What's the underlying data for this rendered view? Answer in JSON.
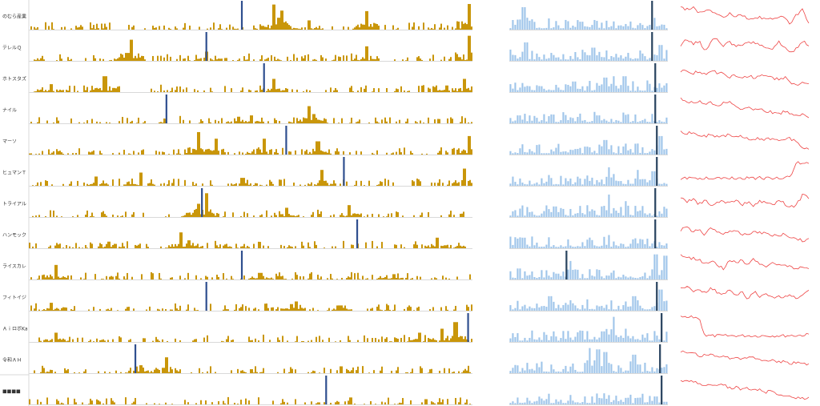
{
  "chart_data": {
    "type": "bar",
    "panels": [
      "daily-volume",
      "weekly-volume",
      "trend-line"
    ],
    "colors": {
      "daily_bar": "#c9960a",
      "weekly_bar": "#9ec4ea",
      "marker": "#2f4f8f",
      "marker_dark": "#27425e",
      "line": "#ee4444",
      "grid": "#d9d9d9"
    },
    "rows": [
      {
        "label": "のむら産業",
        "daily_marker": 0.48,
        "daily_spikes": [
          [
            0.55,
            0.95
          ],
          [
            0.56,
            0.45
          ],
          [
            0.57,
            0.72
          ],
          [
            0.76,
            0.7
          ],
          [
            0.99,
            0.97
          ],
          [
            0.63,
            0.35
          ]
        ],
        "weekly_marker": 0.9,
        "weekly_spikes": [
          [
            0.08,
            0.85
          ],
          [
            0.1,
            0.45
          ],
          [
            0.45,
            0.3
          ]
        ],
        "trend": [
          0.15,
          0.3,
          0.2,
          0.4,
          0.3,
          0.35,
          0.5,
          0.6,
          0.45,
          0.55,
          0.5,
          0.7,
          0.65,
          0.6,
          0.65,
          0.7,
          0.55,
          0.6,
          0.85,
          0.5,
          0.3,
          0.85
        ]
      },
      {
        "label": "テレルＱ",
        "daily_marker": 0.4,
        "daily_spikes": [
          [
            0.23,
            0.8
          ],
          [
            0.22,
            0.3
          ],
          [
            0.4,
            0.35
          ],
          [
            0.76,
            0.55
          ],
          [
            0.99,
            0.95
          ]
        ],
        "weekly_marker": 0.9,
        "weekly_spikes": [
          [
            0.1,
            0.7
          ],
          [
            0.52,
            0.5
          ],
          [
            0.53,
            0.35
          ],
          [
            0.95,
            0.6
          ]
        ],
        "trend": [
          0.5,
          0.2,
          0.4,
          0.3,
          0.7,
          0.3,
          0.2,
          0.5,
          0.3,
          0.55,
          0.45,
          0.4,
          0.35,
          0.5,
          0.55,
          0.6,
          0.3,
          0.55,
          0.8,
          0.6,
          0.3,
          0.5
        ]
      },
      {
        "label": "ホトスタズ",
        "daily_marker": 0.53,
        "daily_spikes": [
          [
            0.17,
            0.6
          ],
          [
            0.05,
            0.3
          ],
          [
            0.55,
            0.5
          ],
          [
            0.94,
            0.25
          ],
          [
            0.98,
            0.5
          ]
        ],
        "weekly_marker": 0.92,
        "weekly_spikes": [
          [
            0.6,
            0.55
          ],
          [
            0.65,
            0.6
          ],
          [
            0.72,
            0.6
          ],
          [
            0.4,
            0.4
          ]
        ],
        "trend": [
          0.3,
          0.2,
          0.35,
          0.25,
          0.4,
          0.2,
          0.35,
          0.3,
          0.5,
          0.4,
          0.5,
          0.45,
          0.5,
          0.45,
          0.4,
          0.5,
          0.6,
          0.5,
          0.7,
          0.85,
          0.7,
          0.75
        ]
      },
      {
        "label": "ナイル",
        "daily_marker": 0.31,
        "daily_spikes": [
          [
            0.63,
            0.65
          ],
          [
            0.64,
            0.35
          ],
          [
            0.5,
            0.3
          ],
          [
            0.47,
            0.25
          ]
        ],
        "weekly_marker": 0.92,
        "weekly_spikes": [
          [
            0.05,
            0.3
          ],
          [
            0.55,
            0.3
          ]
        ],
        "trend": [
          0.1,
          0.2,
          0.25,
          0.2,
          0.3,
          0.25,
          0.35,
          0.3,
          0.25,
          0.4,
          0.5,
          0.45,
          0.55,
          0.5,
          0.6,
          0.65,
          0.75,
          0.6,
          0.7,
          0.8,
          0.75,
          0.85
        ]
      },
      {
        "label": "マーソ",
        "daily_marker": 0.58,
        "daily_spikes": [
          [
            0.38,
            0.85
          ],
          [
            0.42,
            0.6
          ],
          [
            0.53,
            0.6
          ],
          [
            0.65,
            0.5
          ],
          [
            0.99,
            0.7
          ]
        ],
        "weekly_marker": 0.93,
        "weekly_spikes": [
          [
            0.6,
            0.55
          ],
          [
            0.95,
            0.7
          ],
          [
            0.48,
            0.3
          ]
        ],
        "trend": [
          0.2,
          0.25,
          0.2,
          0.3,
          0.35,
          0.3,
          0.4,
          0.35,
          0.3,
          0.4,
          0.35,
          0.45,
          0.5,
          0.45,
          0.5,
          0.45,
          0.55,
          0.5,
          0.45,
          0.6,
          0.8,
          0.85
        ]
      },
      {
        "label": "ヒュマンＴ",
        "daily_marker": 0.71,
        "daily_spikes": [
          [
            0.25,
            0.5
          ],
          [
            0.66,
            0.6
          ],
          [
            0.98,
            0.65
          ],
          [
            0.15,
            0.35
          ],
          [
            0.48,
            0.3
          ]
        ],
        "weekly_marker": 0.93,
        "weekly_spikes": [
          [
            0.62,
            0.7
          ],
          [
            0.8,
            0.6
          ],
          [
            0.9,
            0.55
          ]
        ],
        "trend": [
          0.8,
          0.8,
          0.78,
          0.8,
          0.79,
          0.78,
          0.8,
          0.78,
          0.79,
          0.8,
          0.78,
          0.79,
          0.8,
          0.78,
          0.79,
          0.78,
          0.77,
          0.78,
          0.75,
          0.15,
          0.2,
          0.15
        ]
      },
      {
        "label": "トライアル",
        "daily_marker": 0.39,
        "daily_spikes": [
          [
            0.4,
            0.9
          ],
          [
            0.38,
            0.5
          ],
          [
            0.72,
            0.45
          ],
          [
            0.58,
            0.35
          ]
        ],
        "weekly_marker": 0.92,
        "weekly_spikes": [
          [
            0.62,
            0.85
          ],
          [
            0.73,
            0.6
          ],
          [
            0.28,
            0.4
          ]
        ],
        "trend": [
          0.3,
          0.5,
          0.35,
          0.6,
          0.4,
          0.7,
          0.5,
          0.45,
          0.55,
          0.4,
          0.6,
          0.5,
          0.65,
          0.45,
          0.55,
          0.6,
          0.45,
          0.55,
          0.7,
          0.6,
          0.2,
          0.3
        ]
      },
      {
        "label": "ハンモック",
        "daily_marker": 0.74,
        "daily_spikes": [
          [
            0.34,
            0.6
          ],
          [
            0.36,
            0.3
          ],
          [
            0.92,
            0.4
          ],
          [
            0.18,
            0.25
          ]
        ],
        "weekly_marker": 0.92,
        "weekly_spikes": [
          [
            0.08,
            0.4
          ],
          [
            0.62,
            0.5
          ],
          [
            0.82,
            0.35
          ]
        ],
        "trend": [
          0.4,
          0.2,
          0.5,
          0.3,
          0.55,
          0.25,
          0.45,
          0.5,
          0.4,
          0.45,
          0.5,
          0.55,
          0.4,
          0.45,
          0.5,
          0.55,
          0.6,
          0.5,
          0.65,
          0.7,
          0.8,
          0.75
        ]
      },
      {
        "label": "ライスカレ",
        "daily_marker": 0.48,
        "daily_spikes": [
          [
            0.06,
            0.55
          ],
          [
            0.52,
            0.25
          ],
          [
            0.82,
            0.2
          ]
        ],
        "weekly_marker": 0.36,
        "weekly_spikes": [
          [
            0.38,
            0.7
          ],
          [
            0.92,
            0.95
          ],
          [
            0.98,
            0.9
          ]
        ],
        "trend": [
          0.1,
          0.2,
          0.25,
          0.3,
          0.45,
          0.35,
          0.5,
          0.65,
          0.3,
          0.4,
          0.35,
          0.55,
          0.25,
          0.5,
          0.6,
          0.4,
          0.55,
          0.5,
          0.6,
          0.65,
          0.6,
          0.7
        ]
      },
      {
        "label": "フィトイジ",
        "daily_marker": 0.4,
        "daily_spikes": [
          [
            0.59,
            0.25
          ],
          [
            0.6,
            0.35
          ],
          [
            0.05,
            0.3
          ],
          [
            0.7,
            0.2
          ]
        ],
        "weekly_marker": 0.93,
        "weekly_spikes": [
          [
            0.25,
            0.55
          ],
          [
            0.78,
            0.55
          ],
          [
            0.95,
            0.8
          ]
        ],
        "trend": [
          0.2,
          0.1,
          0.3,
          0.2,
          0.4,
          0.2,
          0.35,
          0.45,
          0.3,
          0.5,
          0.35,
          0.6,
          0.3,
          0.55,
          0.4,
          0.6,
          0.5,
          0.55,
          0.45,
          0.6,
          0.5,
          0.3
        ]
      },
      {
        "label": "ＡｉロボKa",
        "daily_marker": 0.99,
        "daily_spikes": [
          [
            0.96,
            0.75
          ],
          [
            0.93,
            0.5
          ],
          [
            0.88,
            0.35
          ],
          [
            0.06,
            0.35
          ]
        ],
        "weekly_marker": 0.96,
        "weekly_spikes": [
          [
            0.65,
            0.95
          ],
          [
            0.73,
            0.5
          ],
          [
            0.58,
            0.4
          ]
        ],
        "trend": [
          0.1,
          0.12,
          0.1,
          0.12,
          0.85,
          0.85,
          0.85,
          0.85,
          0.85,
          0.84,
          0.85,
          0.84,
          0.85,
          0.85,
          0.84,
          0.85,
          0.84,
          0.85,
          0.83,
          0.84,
          0.82,
          0.8
        ]
      },
      {
        "label": "令和ＡＨ",
        "daily_marker": 0.24,
        "daily_spikes": [
          [
            0.31,
            0.6
          ],
          [
            0.25,
            0.3
          ],
          [
            0.5,
            0.15
          ]
        ],
        "weekly_marker": 0.95,
        "weekly_spikes": [
          [
            0.5,
            0.95
          ],
          [
            0.55,
            0.9
          ],
          [
            0.6,
            0.8
          ],
          [
            0.78,
            0.7
          ]
        ],
        "trend": [
          0.2,
          0.3,
          0.25,
          0.4,
          0.35,
          0.3,
          0.45,
          0.4,
          0.5,
          0.45,
          0.55,
          0.5,
          0.45,
          0.6,
          0.55,
          0.6,
          0.65,
          0.6,
          0.7,
          0.65,
          0.7,
          0.72
        ]
      },
      {
        "label": "■■■■",
        "daily_marker": 0.67,
        "daily_spikes": [],
        "weekly_marker": 0.96,
        "weekly_spikes": [
          [
            0.62,
            0.35
          ],
          [
            0.92,
            0.3
          ]
        ],
        "trend": [
          0.1,
          0.15,
          0.2,
          0.25,
          0.3,
          0.25,
          0.35,
          0.3,
          0.45,
          0.4,
          0.5,
          0.45,
          0.55,
          0.5,
          0.6,
          0.55,
          0.7,
          0.75,
          0.8,
          0.82,
          0.85,
          0.8
        ]
      }
    ]
  }
}
